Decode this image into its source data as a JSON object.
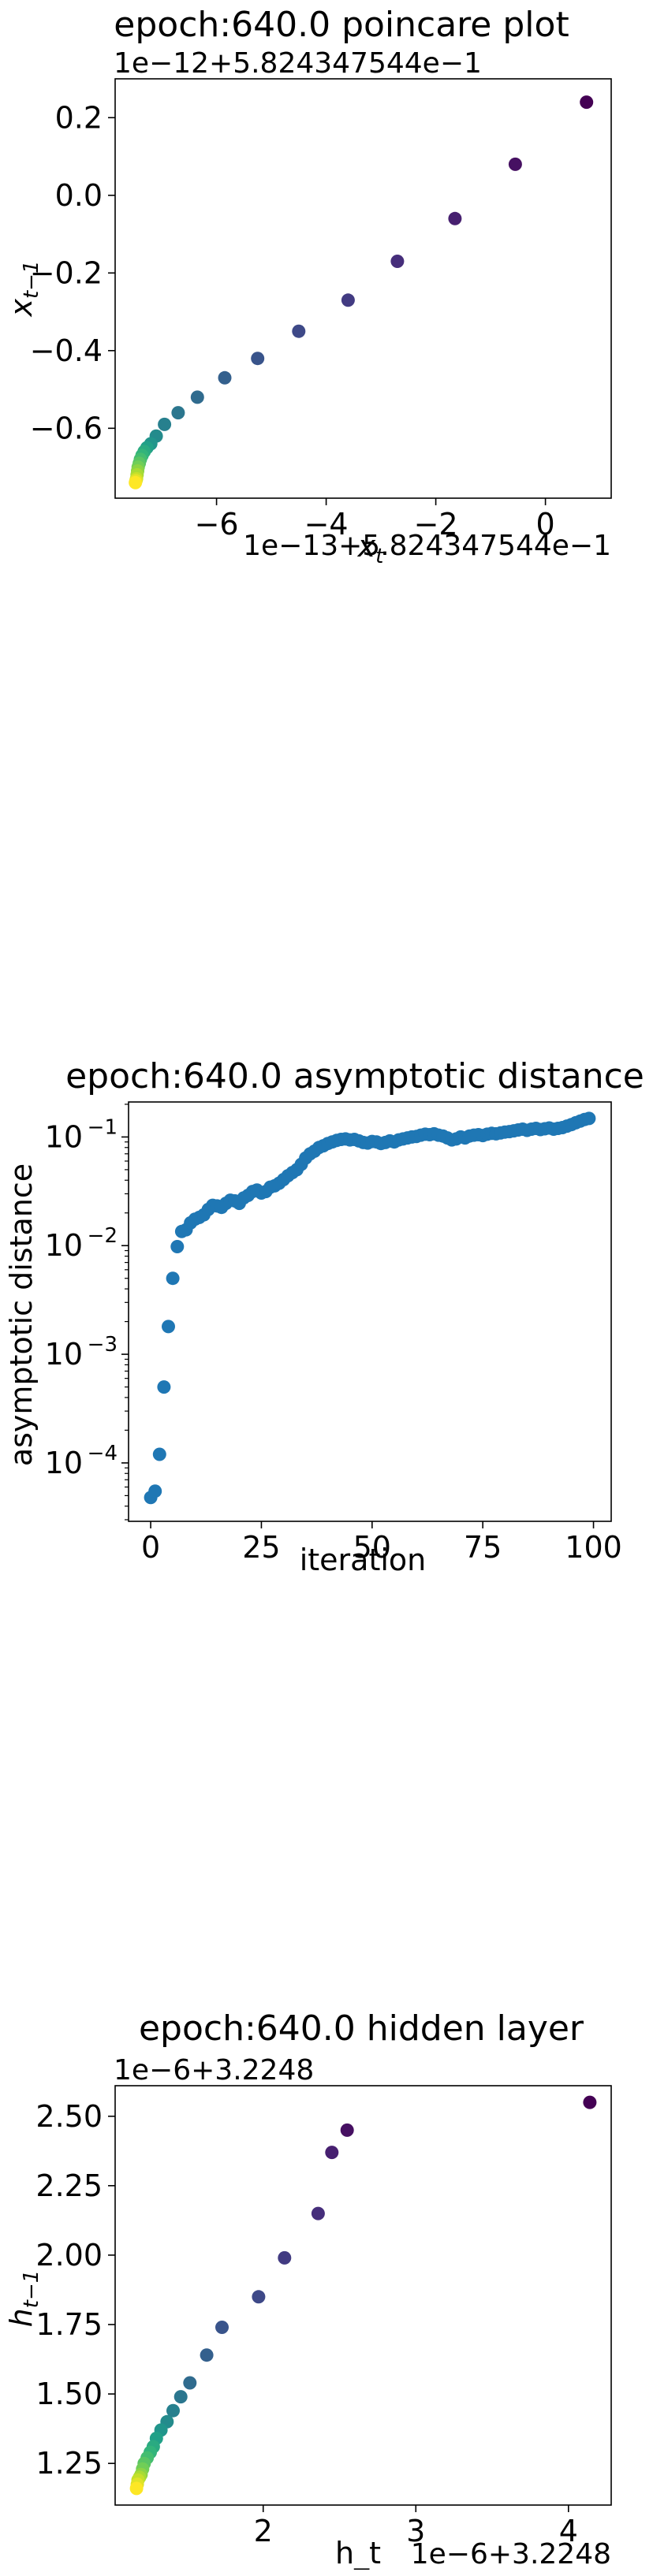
{
  "chart_data": [
    {
      "id": "poincare",
      "type": "scatter",
      "title": "epoch:640.0 poincare plot",
      "xlabel": "x_t",
      "ylabel": "x_{t−1}",
      "x_offset_text": "1e−13+5.824347544e−1",
      "y_offset_text": "1e−12+5.824347544e−1",
      "xlim": [
        -7.85,
        1.2
      ],
      "ylim": [
        -0.78,
        0.3
      ],
      "xticks": [
        -6,
        -4,
        -2,
        0
      ],
      "xtick_labels": [
        "−6",
        "−4",
        "−2",
        "0"
      ],
      "yticks": [
        -0.6,
        -0.4,
        -0.2,
        0.0,
        0.2
      ],
      "ytick_labels": [
        "−0.6",
        "−0.4",
        "−0.2",
        "0.0",
        "0.2"
      ],
      "colormap": "viridis",
      "x": [
        0.75,
        -0.55,
        -1.65,
        -2.7,
        -3.6,
        -4.5,
        -5.25,
        -5.85,
        -6.35,
        -6.7,
        -6.95,
        -7.1,
        -7.2,
        -7.27,
        -7.32,
        -7.36,
        -7.39,
        -7.41,
        -7.43,
        -7.44,
        -7.45,
        -7.46,
        -7.47,
        -7.48
      ],
      "y": [
        0.24,
        0.08,
        -0.06,
        -0.17,
        -0.27,
        -0.35,
        -0.42,
        -0.47,
        -0.52,
        -0.56,
        -0.59,
        -0.62,
        -0.64,
        -0.65,
        -0.66,
        -0.67,
        -0.68,
        -0.69,
        -0.7,
        -0.71,
        -0.72,
        -0.73,
        -0.735,
        -0.74
      ]
    },
    {
      "id": "asymptotic",
      "type": "scatter",
      "title": "epoch:640.0 asymptotic distance",
      "xlabel": "iteration",
      "ylabel": "asymptotic distance",
      "yscale": "log",
      "xlim": [
        -5,
        104
      ],
      "ylim": [
        2.9e-05,
        0.21
      ],
      "xticks": [
        0,
        25,
        50,
        75,
        100
      ],
      "xtick_labels": [
        "0",
        "25",
        "50",
        "75",
        "100"
      ],
      "ytick_base": "10",
      "ytick_exponents": [
        "−4",
        "−3",
        "−2",
        "−1"
      ],
      "yticks": [
        0.0001,
        0.001,
        0.01,
        0.1
      ],
      "color": "#1f77b4",
      "points": [
        [
          0,
          4.8e-05
        ],
        [
          1,
          5.5e-05
        ],
        [
          2,
          0.00012
        ],
        [
          3,
          0.0005
        ],
        [
          4,
          0.0018
        ],
        [
          5,
          0.005
        ],
        [
          6,
          0.0098
        ],
        [
          7,
          0.0135
        ],
        [
          8,
          0.014
        ],
        [
          9,
          0.0162
        ],
        [
          10,
          0.0175
        ],
        [
          11,
          0.0182
        ],
        [
          12,
          0.0192
        ],
        [
          13,
          0.0215
        ],
        [
          14,
          0.0235
        ],
        [
          15,
          0.0232
        ],
        [
          16,
          0.0225
        ],
        [
          17,
          0.0245
        ],
        [
          18,
          0.0262
        ],
        [
          19,
          0.0258
        ],
        [
          20,
          0.0245
        ],
        [
          21,
          0.0275
        ],
        [
          22,
          0.029
        ],
        [
          23,
          0.0315
        ],
        [
          24,
          0.0325
        ],
        [
          25,
          0.0305
        ],
        [
          26,
          0.0315
        ],
        [
          27,
          0.0345
        ],
        [
          28,
          0.0355
        ],
        [
          29,
          0.0375
        ],
        [
          30,
          0.0405
        ],
        [
          31,
          0.044
        ],
        [
          32,
          0.047
        ],
        [
          33,
          0.05
        ],
        [
          34,
          0.056
        ],
        [
          35,
          0.064
        ],
        [
          36,
          0.07
        ],
        [
          37,
          0.074
        ],
        [
          38,
          0.08
        ],
        [
          39,
          0.083
        ],
        [
          40,
          0.087
        ],
        [
          41,
          0.09
        ],
        [
          42,
          0.093
        ],
        [
          43,
          0.095
        ],
        [
          44,
          0.096
        ],
        [
          45,
          0.094
        ],
        [
          46,
          0.095
        ],
        [
          47,
          0.092
        ],
        [
          48,
          0.089
        ],
        [
          49,
          0.088
        ],
        [
          50,
          0.091
        ],
        [
          51,
          0.09
        ],
        [
          52,
          0.087
        ],
        [
          53,
          0.089
        ],
        [
          54,
          0.092
        ],
        [
          55,
          0.09
        ],
        [
          56,
          0.094
        ],
        [
          57,
          0.096
        ],
        [
          58,
          0.098
        ],
        [
          59,
          0.1
        ],
        [
          60,
          0.101
        ],
        [
          61,
          0.104
        ],
        [
          62,
          0.106
        ],
        [
          63,
          0.105
        ],
        [
          64,
          0.107
        ],
        [
          65,
          0.104
        ],
        [
          66,
          0.102
        ],
        [
          67,
          0.098
        ],
        [
          68,
          0.094
        ],
        [
          69,
          0.096
        ],
        [
          70,
          0.1
        ],
        [
          71,
          0.098
        ],
        [
          72,
          0.102
        ],
        [
          73,
          0.104
        ],
        [
          74,
          0.105
        ],
        [
          75,
          0.103
        ],
        [
          76,
          0.106
        ],
        [
          77,
          0.108
        ],
        [
          78,
          0.107
        ],
        [
          79,
          0.109
        ],
        [
          80,
          0.111
        ],
        [
          81,
          0.112
        ],
        [
          82,
          0.114
        ],
        [
          83,
          0.116
        ],
        [
          84,
          0.118
        ],
        [
          85,
          0.115
        ],
        [
          86,
          0.118
        ],
        [
          87,
          0.12
        ],
        [
          88,
          0.117
        ],
        [
          89,
          0.119
        ],
        [
          90,
          0.121
        ],
        [
          91,
          0.118
        ],
        [
          92,
          0.12
        ],
        [
          93,
          0.122
        ],
        [
          94,
          0.126
        ],
        [
          95,
          0.13
        ],
        [
          96,
          0.135
        ],
        [
          97,
          0.14
        ],
        [
          98,
          0.145
        ],
        [
          99,
          0.148
        ]
      ]
    },
    {
      "id": "hidden",
      "type": "scatter",
      "title": "epoch:640.0 hidden layer",
      "xlabel": "h_t",
      "ylabel": "h_{t−1}",
      "x_offset_text": "1e−6+3.2248",
      "y_offset_text": "1e−6+3.2248",
      "xlim": [
        1.03,
        4.28
      ],
      "ylim": [
        1.1,
        2.61
      ],
      "xticks": [
        2,
        3,
        4
      ],
      "xtick_labels": [
        "2",
        "3",
        "4"
      ],
      "yticks": [
        1.25,
        1.5,
        1.75,
        2.0,
        2.25,
        2.5
      ],
      "ytick_labels": [
        "1.25",
        "1.50",
        "1.75",
        "2.00",
        "2.25",
        "2.50"
      ],
      "colormap": "viridis",
      "x": [
        4.14,
        2.55,
        2.45,
        2.36,
        2.14,
        1.97,
        1.73,
        1.63,
        1.52,
        1.46,
        1.41,
        1.37,
        1.33,
        1.3,
        1.28,
        1.26,
        1.24,
        1.22,
        1.21,
        1.2,
        1.19,
        1.18,
        1.175,
        1.17
      ],
      "y": [
        2.55,
        2.45,
        2.37,
        2.15,
        1.99,
        1.85,
        1.74,
        1.64,
        1.54,
        1.49,
        1.44,
        1.4,
        1.37,
        1.34,
        1.31,
        1.29,
        1.27,
        1.25,
        1.23,
        1.21,
        1.2,
        1.19,
        1.175,
        1.16
      ]
    }
  ]
}
